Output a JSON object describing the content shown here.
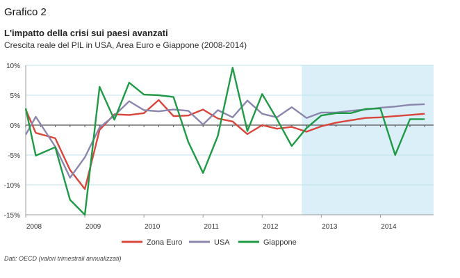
{
  "header": {
    "label": "Grafico 2",
    "title": "L'impatto della crisi sui paesi avanzati",
    "subtitle": "Crescita reale del PIL in USA, Area Euro e Giappone (2008-2014)"
  },
  "source": "Dati: OECD (valori trimestrali annualizzati)",
  "chart_data": {
    "type": "line",
    "x_start": 2008,
    "x_end": 2014.9,
    "x_ticks": [
      "2008",
      "2009",
      "2010",
      "2011",
      "2012",
      "2013",
      "2014"
    ],
    "ylim": [
      -15,
      10
    ],
    "y_ticks": [
      10,
      5,
      0,
      -5,
      -10,
      -15
    ],
    "y_tick_labels": [
      "10%",
      "5%",
      "0%",
      "-5%",
      "-10%",
      "-15%"
    ],
    "grid": "horizontal",
    "shaded_from": 2012.67,
    "legend_position": "bottom",
    "colors": {
      "zona_euro": "#d9453b",
      "usa": "#8a86ad",
      "giappone": "#1e9a45",
      "shade": "#daeff7",
      "grid": "#bfe3ee",
      "zero": "#555555"
    },
    "x": [
      2008.0,
      2008.17,
      2008.5,
      2008.75,
      2009.0,
      2009.25,
      2009.5,
      2009.75,
      2010.0,
      2010.25,
      2010.5,
      2010.75,
      2011.0,
      2011.25,
      2011.5,
      2011.75,
      2012.0,
      2012.25,
      2012.5,
      2012.75,
      2013.0,
      2013.25,
      2013.5,
      2013.75,
      2014.0,
      2014.25,
      2014.5,
      2014.75
    ],
    "series": [
      {
        "name": "Zona Euro",
        "key": "zona_euro",
        "values": [
          2.6,
          -1.3,
          -2.2,
          -7.5,
          -10.7,
          -0.8,
          1.8,
          1.7,
          2.0,
          4.2,
          1.5,
          1.6,
          2.6,
          1.1,
          0.6,
          -1.5,
          0.0,
          -0.6,
          -0.3,
          -1.1,
          -0.2,
          0.4,
          0.8,
          1.2,
          1.3,
          1.5,
          1.7,
          1.9
        ]
      },
      {
        "name": "USA",
        "key": "usa",
        "values": [
          -1.6,
          1.4,
          -3.6,
          -8.8,
          -5.4,
          -0.4,
          1.6,
          4.0,
          2.5,
          2.3,
          2.6,
          2.4,
          0.1,
          2.5,
          1.3,
          4.1,
          1.9,
          1.3,
          3.0,
          1.2,
          2.1,
          2.1,
          2.4,
          2.6,
          2.9,
          3.1,
          3.4,
          3.5
        ]
      },
      {
        "name": "Giappone",
        "key": "giappone",
        "values": [
          2.8,
          -5.1,
          -3.7,
          -12.5,
          -15.0,
          6.4,
          0.9,
          7.1,
          5.1,
          5.0,
          4.7,
          -2.8,
          -8.0,
          -1.8,
          9.6,
          -1.0,
          5.2,
          1.0,
          -3.5,
          -0.5,
          1.6,
          2.0,
          2.0,
          2.7,
          2.8,
          -5.0,
          1.0,
          1.0
        ]
      }
    ]
  }
}
